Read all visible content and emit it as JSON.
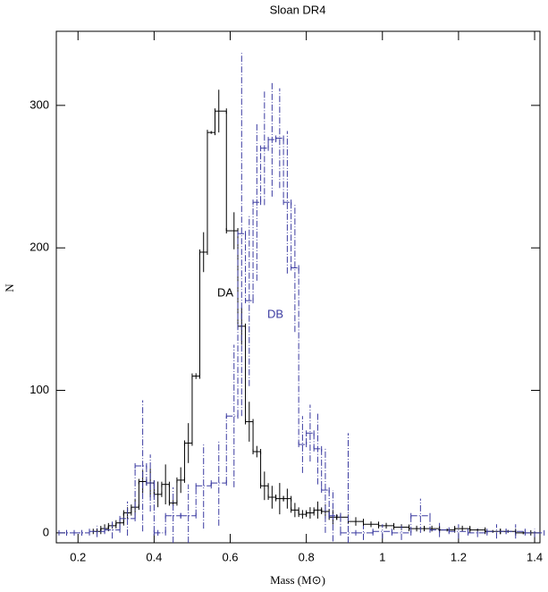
{
  "chart_data": {
    "type": "histogram-errorbar",
    "title": "Sloan DR4",
    "xlabel": "Mass (M⊙)",
    "ylabel": "N",
    "xlim": [
      0.143,
      1.414
    ],
    "ylim": [
      -7,
      352
    ],
    "xticks": [
      0.2,
      0.4,
      0.6,
      0.8,
      1,
      1.2,
      1.4
    ],
    "yticks": [
      0,
      100,
      200,
      300
    ],
    "series": [
      {
        "name": "DA",
        "color": "#000000",
        "dashed": false,
        "x": [
          0.25,
          0.27,
          0.29,
          0.31,
          0.33,
          0.35,
          0.37,
          0.39,
          0.41,
          0.43,
          0.45,
          0.47,
          0.49,
          0.51,
          0.53,
          0.55,
          0.57,
          0.61,
          0.63,
          0.65,
          0.67,
          0.69,
          0.71,
          0.73,
          0.75,
          0.77,
          0.79,
          0.81,
          0.83,
          0.85,
          0.87,
          0.89,
          0.93,
          0.97,
          1.01,
          1.05,
          1.09,
          1.13,
          1.17,
          1.21,
          1.25,
          1.29,
          1.33,
          1.37
        ],
        "values": [
          1,
          3,
          5,
          7,
          14,
          18,
          36,
          35,
          27,
          34,
          21,
          37,
          63,
          110,
          197,
          281,
          296,
          212,
          145,
          78,
          57,
          33,
          25,
          24,
          24,
          16,
          13,
          14,
          16,
          15,
          11,
          11,
          8,
          6,
          5,
          4,
          3,
          3,
          2,
          3,
          2,
          1,
          1,
          0
        ],
        "errors": [
          2,
          3,
          2,
          3,
          4,
          6,
          8,
          10,
          9,
          14,
          2,
          9,
          14,
          2,
          14,
          1,
          15,
          13,
          13,
          14,
          4,
          10,
          8,
          11,
          7,
          5,
          3,
          4,
          6,
          5,
          5,
          3,
          3,
          2,
          2,
          2,
          2,
          2,
          1,
          2,
          1,
          1,
          1,
          1
        ]
      },
      {
        "name": "DB",
        "color": "#3a3aa0",
        "dashed": true,
        "x": [
          0.17,
          0.21,
          0.25,
          0.29,
          0.33,
          0.37,
          0.39,
          0.41,
          0.45,
          0.49,
          0.53,
          0.57,
          0.61,
          0.63,
          0.65,
          0.67,
          0.69,
          0.71,
          0.73,
          0.75,
          0.77,
          0.79,
          0.81,
          0.83,
          0.85,
          0.87,
          0.91,
          0.95,
          1.0,
          1.05,
          1.1,
          1.15,
          1.2,
          1.25,
          1.3,
          1.35,
          1.4
        ],
        "values": [
          0,
          0,
          1,
          2,
          10,
          47,
          35,
          0,
          12,
          12,
          33,
          35,
          82,
          210,
          163,
          232,
          270,
          276,
          277,
          232,
          186,
          62,
          70,
          59,
          30,
          12,
          0,
          0,
          1,
          0,
          12,
          2,
          1,
          0,
          1,
          1,
          0
        ],
        "errors": [
          2,
          2,
          4,
          6,
          12,
          46,
          20,
          2,
          20,
          22,
          30,
          30,
          50,
          128,
          60,
          55,
          40,
          40,
          35,
          50,
          45,
          20,
          20,
          25,
          30,
          18,
          70,
          5,
          5,
          5,
          12,
          5,
          5,
          3,
          5,
          5,
          3
        ]
      }
    ]
  }
}
